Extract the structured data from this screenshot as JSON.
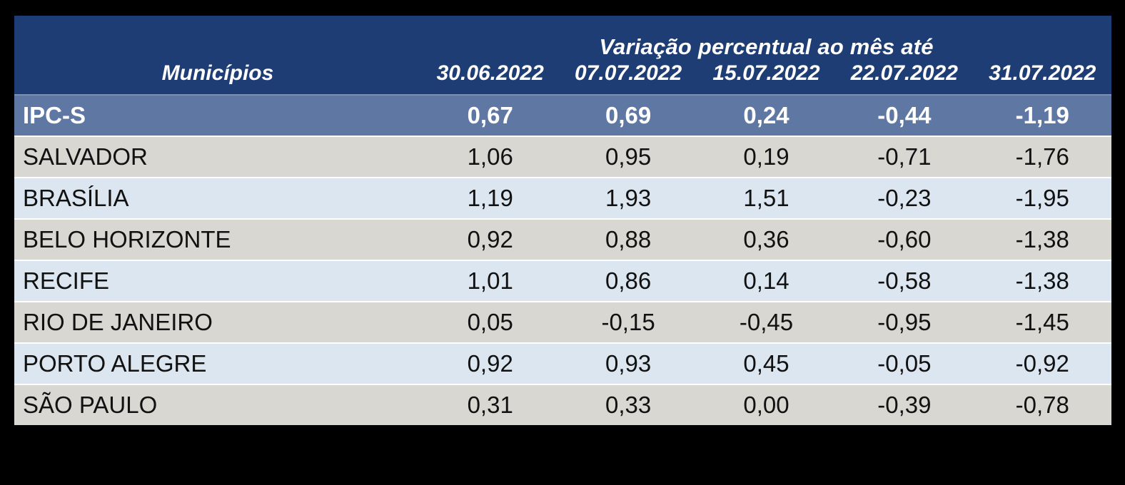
{
  "table": {
    "title": "Variação percentual ao mês até",
    "columns": {
      "municipality": "Municípios",
      "dates": [
        "30.06.2022",
        "07.07.2022",
        "15.07.2022",
        "22.07.2022",
        "31.07.2022"
      ]
    },
    "rows": [
      {
        "name": "IPC-S",
        "values": [
          "0,67",
          "0,69",
          "0,24",
          "-0,44",
          "-1,19"
        ]
      },
      {
        "name": "SALVADOR",
        "values": [
          "1,06",
          "0,95",
          "0,19",
          "-0,71",
          "-1,76"
        ]
      },
      {
        "name": "BRASÍLIA",
        "values": [
          "1,19",
          "1,93",
          "1,51",
          "-0,23",
          "-1,95"
        ]
      },
      {
        "name": "BELO HORIZONTE",
        "values": [
          "0,92",
          "0,88",
          "0,36",
          "-0,60",
          "-1,38"
        ]
      },
      {
        "name": "RECIFE",
        "values": [
          "1,01",
          "0,86",
          "0,14",
          "-0,58",
          "-1,38"
        ]
      },
      {
        "name": "RIO DE JANEIRO",
        "values": [
          "0,05",
          "-0,15",
          "-0,45",
          "-0,95",
          "-1,45"
        ]
      },
      {
        "name": "PORTO ALEGRE",
        "values": [
          "0,92",
          "0,93",
          "0,45",
          "-0,05",
          "-0,92"
        ]
      },
      {
        "name": "SÃO PAULO",
        "values": [
          "0,31",
          "0,33",
          "0,00",
          "-0,39",
          "-0,78"
        ]
      }
    ]
  },
  "colors": {
    "header_bg": "#1e3d74",
    "highlight_row_bg": "#5f77a3",
    "row_gray": "#d8d7d2",
    "row_light_blue": "#dce6f0",
    "header_text": "#ffffff",
    "body_text": "#111111",
    "canvas_bg": "#000000"
  },
  "chart_data": {
    "type": "table",
    "title": "Variação percentual ao mês até",
    "columns": [
      "Municípios",
      "30.06.2022",
      "07.07.2022",
      "15.07.2022",
      "22.07.2022",
      "31.07.2022"
    ],
    "rows": [
      {
        "name": "IPC-S",
        "values": [
          0.67,
          0.69,
          0.24,
          -0.44,
          -1.19
        ]
      },
      {
        "name": "SALVADOR",
        "values": [
          1.06,
          0.95,
          0.19,
          -0.71,
          -1.76
        ]
      },
      {
        "name": "BRASÍLIA",
        "values": [
          1.19,
          1.93,
          1.51,
          -0.23,
          -1.95
        ]
      },
      {
        "name": "BELO HORIZONTE",
        "values": [
          0.92,
          0.88,
          0.36,
          -0.6,
          -1.38
        ]
      },
      {
        "name": "RECIFE",
        "values": [
          1.01,
          0.86,
          0.14,
          -0.58,
          -1.38
        ]
      },
      {
        "name": "RIO DE JANEIRO",
        "values": [
          0.05,
          -0.15,
          -0.45,
          -0.95,
          -1.45
        ]
      },
      {
        "name": "PORTO ALEGRE",
        "values": [
          0.92,
          0.93,
          0.45,
          -0.05,
          -0.92
        ]
      },
      {
        "name": "SÃO PAULO",
        "values": [
          0.31,
          0.33,
          0.0,
          -0.39,
          -0.78
        ]
      }
    ],
    "layout": {
      "highlighted_row": "IPC-S",
      "zebra_striping": true,
      "value_format": "pt-BR comma decimals"
    }
  }
}
